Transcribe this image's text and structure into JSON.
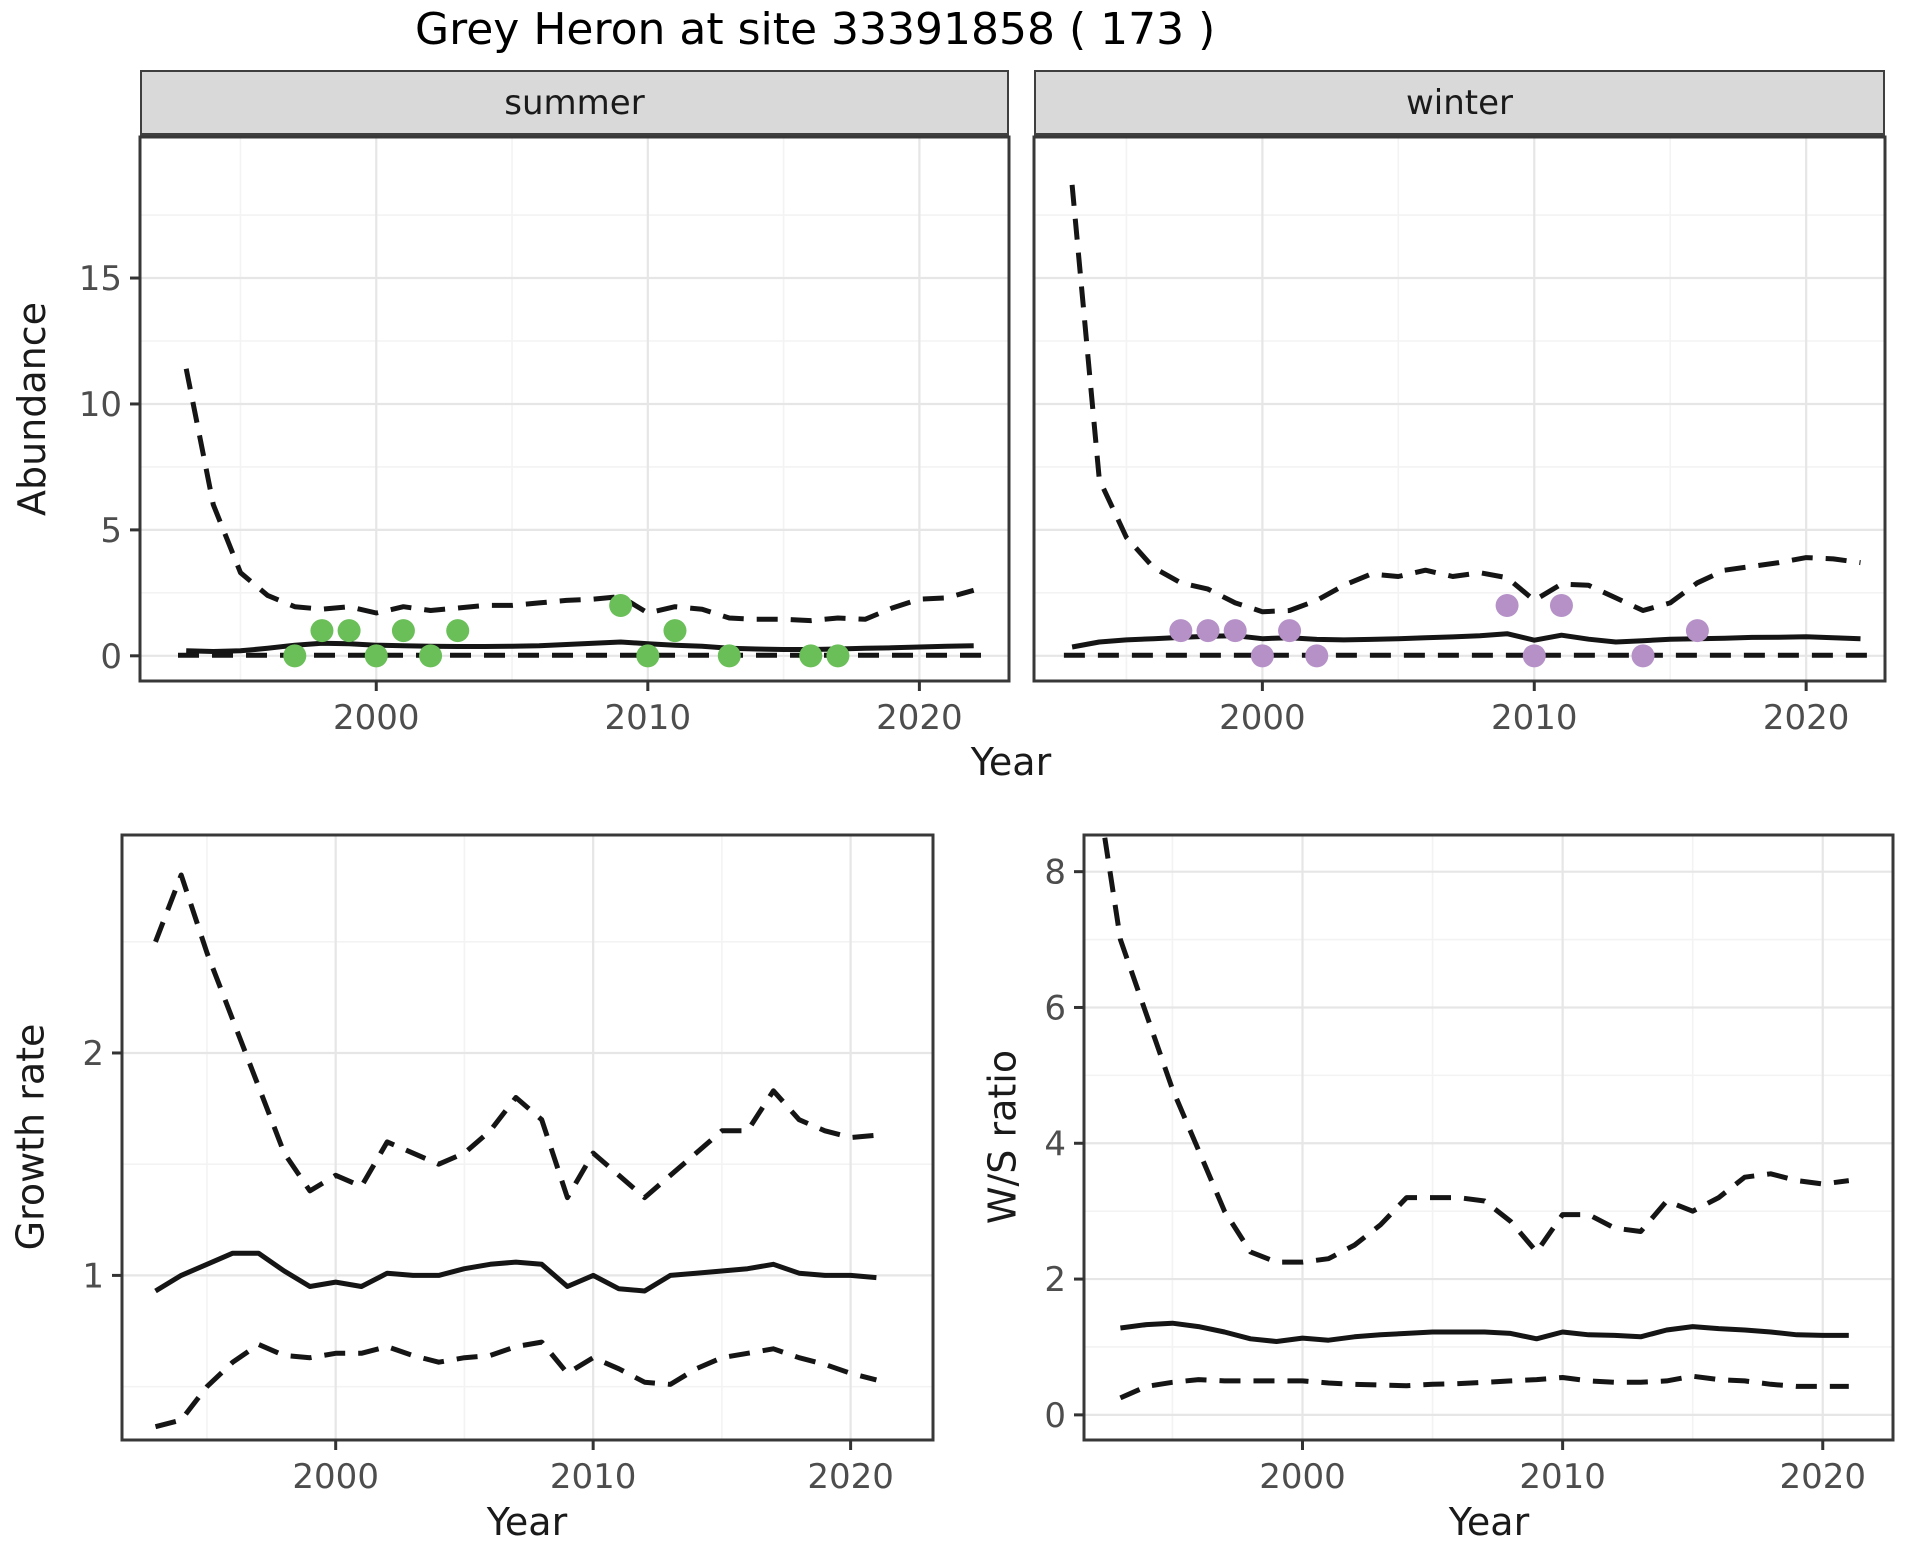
{
  "title": "Grey Heron at site 33391858 ( 173 )",
  "facets": {
    "summer_label": "summer",
    "winter_label": "winter"
  },
  "axis_titles": {
    "top_y": "Abundance",
    "top_x": "Year",
    "growth_y": "Growth rate",
    "growth_x": "Year",
    "ws_y": "W/S ratio",
    "ws_x": "Year"
  },
  "colors": {
    "line": "#151515",
    "summer_point": "#6abf59",
    "winter_point": "#b591c8",
    "grid_major": "#e6e6e6",
    "grid_minor": "#f3f3f3",
    "panel_border": "#383838",
    "tick_mark": "#333333",
    "tick_label": "#4d4d4d",
    "strip_fill": "#d9d9d9",
    "background": "#ffffff"
  },
  "chart_data": [
    {
      "id": "abundance_summer",
      "type": "line",
      "title": "summer",
      "xlabel": "Year",
      "ylabel": "Abundance",
      "xlim": [
        1991.3,
        2023.3
      ],
      "ylim": [
        -1.0,
        20.6
      ],
      "xticks": [
        2000,
        2010,
        2020
      ],
      "yticks": [
        0,
        5,
        10,
        15
      ],
      "xminor": [
        1995,
        2005,
        2015
      ],
      "yminor": [
        2.5,
        7.5,
        12.5,
        17.5
      ],
      "show_y_axis": true,
      "grid": true,
      "legend": "none",
      "series": [
        {
          "name": "upper_ci",
          "style": "dashed",
          "x": [
            1993,
            1994,
            1995,
            1996,
            1997,
            1998,
            1999,
            2000,
            2001,
            2002,
            2003,
            2004,
            2005,
            2006,
            2007,
            2008,
            2009,
            2010,
            2011,
            2012,
            2013,
            2014,
            2015,
            2016,
            2017,
            2018,
            2019,
            2020,
            2021,
            2022
          ],
          "y": [
            11.4,
            6.0,
            3.3,
            2.4,
            1.95,
            1.85,
            1.95,
            1.7,
            1.95,
            1.8,
            1.9,
            2.0,
            2.0,
            2.1,
            2.2,
            2.25,
            2.35,
            1.7,
            1.95,
            1.85,
            1.5,
            1.45,
            1.45,
            1.4,
            1.5,
            1.45,
            1.9,
            2.25,
            2.3,
            2.6
          ]
        },
        {
          "name": "mean",
          "style": "solid",
          "x": [
            1993,
            1994,
            1995,
            1996,
            1997,
            1998,
            1999,
            2000,
            2001,
            2002,
            2003,
            2004,
            2005,
            2006,
            2007,
            2008,
            2009,
            2010,
            2011,
            2012,
            2013,
            2014,
            2015,
            2016,
            2017,
            2018,
            2019,
            2020,
            2021,
            2022
          ],
          "y": [
            0.2,
            0.17,
            0.2,
            0.3,
            0.42,
            0.5,
            0.48,
            0.42,
            0.4,
            0.38,
            0.37,
            0.37,
            0.38,
            0.4,
            0.45,
            0.5,
            0.55,
            0.48,
            0.42,
            0.38,
            0.3,
            0.27,
            0.25,
            0.25,
            0.27,
            0.3,
            0.32,
            0.35,
            0.38,
            0.4
          ]
        },
        {
          "name": "lower_ci",
          "style": "dashed",
          "x": [
            1992.7,
            2022.4
          ],
          "y": [
            0.02,
            0.02
          ]
        },
        {
          "name": "observations",
          "style": "points",
          "color_key": "summer_point",
          "x": [
            1997,
            1998,
            1999,
            2000,
            2001,
            2002,
            2003,
            2009,
            2010,
            2011,
            2013,
            2016,
            2017
          ],
          "y": [
            0,
            1,
            1,
            0,
            1,
            0,
            1,
            2,
            0,
            1,
            0,
            0,
            0
          ]
        }
      ]
    },
    {
      "id": "abundance_winter",
      "type": "line",
      "title": "winter",
      "xlabel": "Year",
      "ylabel": "Abundance",
      "xlim": [
        1991.6,
        2022.9
      ],
      "ylim": [
        -1.0,
        20.6
      ],
      "xticks": [
        2000,
        2010,
        2020
      ],
      "yticks": [
        0,
        5,
        10,
        15
      ],
      "xminor": [
        1995,
        2005,
        2015
      ],
      "yminor": [
        2.5,
        7.5,
        12.5,
        17.5
      ],
      "show_y_axis": false,
      "grid": true,
      "legend": "none",
      "series": [
        {
          "name": "upper_ci",
          "style": "dashed",
          "x": [
            1993,
            1994,
            1995,
            1996,
            1997,
            1998,
            1999,
            2000,
            2001,
            2002,
            2003,
            2004,
            2005,
            2006,
            2007,
            2008,
            2009,
            2010,
            2011,
            2012,
            2013,
            2014,
            2015,
            2016,
            2017,
            2018,
            2019,
            2020,
            2021,
            2022
          ],
          "y": [
            18.7,
            7.0,
            4.7,
            3.5,
            2.9,
            2.65,
            2.1,
            1.75,
            1.8,
            2.2,
            2.8,
            3.25,
            3.15,
            3.4,
            3.15,
            3.3,
            3.1,
            2.2,
            2.85,
            2.8,
            2.3,
            1.8,
            2.1,
            2.9,
            3.4,
            3.55,
            3.7,
            3.9,
            3.85,
            3.7
          ]
        },
        {
          "name": "mean",
          "style": "solid",
          "x": [
            1993,
            1994,
            1995,
            1996,
            1997,
            1998,
            1999,
            2000,
            2001,
            2002,
            2003,
            2004,
            2005,
            2006,
            2007,
            2008,
            2009,
            2010,
            2011,
            2012,
            2013,
            2014,
            2015,
            2016,
            2017,
            2018,
            2019,
            2020,
            2021,
            2022
          ],
          "y": [
            0.35,
            0.55,
            0.63,
            0.68,
            0.73,
            0.78,
            0.8,
            0.68,
            0.72,
            0.65,
            0.63,
            0.65,
            0.68,
            0.72,
            0.75,
            0.8,
            0.88,
            0.62,
            0.82,
            0.66,
            0.55,
            0.6,
            0.66,
            0.68,
            0.7,
            0.73,
            0.74,
            0.76,
            0.72,
            0.68
          ]
        },
        {
          "name": "lower_ci",
          "style": "dashed",
          "x": [
            1992.7,
            2022.4
          ],
          "y": [
            0.02,
            0.02
          ]
        },
        {
          "name": "observations",
          "style": "points",
          "color_key": "winter_point",
          "x": [
            1997,
            1998,
            1999,
            2000,
            2001,
            2002,
            2009,
            2010,
            2011,
            2014,
            2016
          ],
          "y": [
            1,
            1,
            1,
            0,
            1,
            0,
            2,
            0,
            2,
            0,
            1
          ]
        }
      ]
    },
    {
      "id": "growth_rate",
      "type": "line",
      "title": "Growth rate",
      "xlabel": "Year",
      "ylabel": "Growth rate",
      "xlim": [
        1991.7,
        2023.2
      ],
      "ylim": [
        0.26,
        2.98
      ],
      "xticks": [
        2000,
        2010,
        2020
      ],
      "yticks": [
        1,
        2
      ],
      "xminor": [
        1995,
        2005,
        2015
      ],
      "yminor": [
        0.5,
        1.5,
        2.5
      ],
      "show_y_axis": true,
      "grid": true,
      "legend": "none",
      "series": [
        {
          "name": "upper_ci",
          "style": "dashed",
          "x": [
            1993,
            1994,
            1995,
            1996,
            1997,
            1998,
            1999,
            2000,
            2001,
            2002,
            2003,
            2004,
            2005,
            2006,
            2007,
            2008,
            2009,
            2010,
            2011,
            2012,
            2013,
            2014,
            2015,
            2016,
            2017,
            2018,
            2019,
            2020,
            2021
          ],
          "y": [
            2.5,
            2.8,
            2.45,
            2.15,
            1.85,
            1.55,
            1.38,
            1.45,
            1.4,
            1.6,
            1.55,
            1.5,
            1.55,
            1.65,
            1.8,
            1.7,
            1.35,
            1.55,
            1.45,
            1.35,
            1.45,
            1.55,
            1.65,
            1.65,
            1.83,
            1.7,
            1.65,
            1.62,
            1.63
          ]
        },
        {
          "name": "mean",
          "style": "solid",
          "x": [
            1993,
            1994,
            1995,
            1996,
            1997,
            1998,
            1999,
            2000,
            2001,
            2002,
            2003,
            2004,
            2005,
            2006,
            2007,
            2008,
            2009,
            2010,
            2011,
            2012,
            2013,
            2014,
            2015,
            2016,
            2017,
            2018,
            2019,
            2020,
            2021
          ],
          "y": [
            0.93,
            1.0,
            1.05,
            1.1,
            1.1,
            1.02,
            0.95,
            0.97,
            0.95,
            1.01,
            1.0,
            1.0,
            1.03,
            1.05,
            1.06,
            1.05,
            0.95,
            1.0,
            0.94,
            0.93,
            1.0,
            1.01,
            1.02,
            1.03,
            1.05,
            1.01,
            1.0,
            1.0,
            0.99
          ]
        },
        {
          "name": "lower_ci",
          "style": "dashed",
          "x": [
            1993,
            1994,
            1995,
            1996,
            1997,
            1998,
            1999,
            2000,
            2001,
            2002,
            2003,
            2004,
            2005,
            2006,
            2007,
            2008,
            2009,
            2010,
            2011,
            2012,
            2013,
            2014,
            2015,
            2016,
            2017,
            2018,
            2019,
            2020,
            2021
          ],
          "y": [
            0.32,
            0.35,
            0.5,
            0.61,
            0.69,
            0.64,
            0.63,
            0.65,
            0.65,
            0.68,
            0.64,
            0.61,
            0.63,
            0.64,
            0.68,
            0.7,
            0.56,
            0.63,
            0.58,
            0.52,
            0.51,
            0.58,
            0.63,
            0.65,
            0.67,
            0.63,
            0.6,
            0.56,
            0.53
          ]
        }
      ]
    },
    {
      "id": "ws_ratio",
      "type": "line",
      "title": "W/S ratio",
      "xlabel": "Year",
      "ylabel": "W/S ratio",
      "xlim": [
        1991.6,
        2022.7
      ],
      "ylim": [
        -0.37,
        8.54
      ],
      "xticks": [
        2000,
        2010,
        2020
      ],
      "yticks": [
        0,
        2,
        4,
        6,
        8
      ],
      "xminor": [
        1995,
        2005,
        2015
      ],
      "yminor": [
        1,
        3,
        5,
        7
      ],
      "show_y_axis": true,
      "grid": true,
      "legend": "none",
      "series": [
        {
          "name": "upper_ci",
          "style": "dashed",
          "x": [
            1992.4,
            1993,
            1994,
            1995,
            1996,
            1997,
            1998,
            1999,
            2000,
            2001,
            2002,
            2003,
            2004,
            2005,
            2006,
            2007,
            2008,
            2009,
            2010,
            2011,
            2012,
            2013,
            2014,
            2015,
            2016,
            2017,
            2018,
            2019,
            2020,
            2021
          ],
          "y": [
            8.5,
            7.0,
            5.9,
            4.8,
            3.9,
            3.0,
            2.4,
            2.25,
            2.25,
            2.3,
            2.5,
            2.8,
            3.2,
            3.2,
            3.2,
            3.15,
            2.85,
            2.4,
            2.95,
            2.95,
            2.75,
            2.7,
            3.15,
            3.0,
            3.2,
            3.5,
            3.55,
            3.45,
            3.4,
            3.45
          ]
        },
        {
          "name": "mean",
          "style": "solid",
          "x": [
            1993,
            1994,
            1995,
            1996,
            1997,
            1998,
            1999,
            2000,
            2001,
            2002,
            2003,
            2004,
            2005,
            2006,
            2007,
            2008,
            2009,
            2010,
            2011,
            2012,
            2013,
            2014,
            2015,
            2016,
            2017,
            2018,
            2019,
            2020,
            2021
          ],
          "y": [
            1.28,
            1.33,
            1.35,
            1.3,
            1.22,
            1.12,
            1.08,
            1.13,
            1.1,
            1.15,
            1.18,
            1.2,
            1.22,
            1.22,
            1.22,
            1.2,
            1.12,
            1.22,
            1.18,
            1.17,
            1.15,
            1.25,
            1.3,
            1.27,
            1.25,
            1.22,
            1.18,
            1.17,
            1.17
          ]
        },
        {
          "name": "lower_ci",
          "style": "dashed",
          "x": [
            1993,
            1994,
            1995,
            1996,
            1997,
            1998,
            1999,
            2000,
            2001,
            2002,
            2003,
            2004,
            2005,
            2006,
            2007,
            2008,
            2009,
            2010,
            2011,
            2012,
            2013,
            2014,
            2015,
            2016,
            2017,
            2018,
            2019,
            2020,
            2021
          ],
          "y": [
            0.25,
            0.42,
            0.48,
            0.52,
            0.5,
            0.5,
            0.5,
            0.5,
            0.47,
            0.45,
            0.44,
            0.43,
            0.45,
            0.46,
            0.48,
            0.5,
            0.52,
            0.55,
            0.5,
            0.48,
            0.48,
            0.5,
            0.57,
            0.52,
            0.5,
            0.45,
            0.42,
            0.42,
            0.42
          ]
        }
      ]
    }
  ]
}
